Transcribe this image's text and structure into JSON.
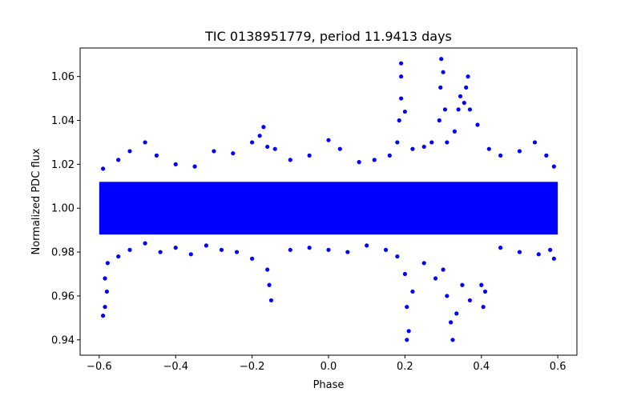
{
  "chart_data": {
    "type": "scatter",
    "title": "TIC 0138951779, period 11.9413 days",
    "xlabel": "Phase",
    "ylabel": "Normalized PDC flux",
    "xlim": [
      -0.65,
      0.65
    ],
    "ylim": [
      0.933,
      1.073
    ],
    "xticks": [
      -0.6,
      -0.4,
      -0.2,
      0.0,
      0.2,
      0.4,
      0.6
    ],
    "xtick_labels": [
      "−0.6",
      "−0.4",
      "−0.2",
      "0.0",
      "0.2",
      "0.4",
      "0.6"
    ],
    "yticks": [
      0.94,
      0.96,
      0.98,
      1.0,
      1.02,
      1.04,
      1.06
    ],
    "ytick_labels": [
      "0.94",
      "0.96",
      "0.98",
      "1.00",
      "1.02",
      "1.04",
      "1.06"
    ],
    "grid": false,
    "series": [
      {
        "name": "flux",
        "color": "#0000ff",
        "band": {
          "x": [
            -0.6,
            0.6
          ],
          "y": [
            0.988,
            1.012
          ]
        },
        "points": [
          [
            -0.59,
            0.951
          ],
          [
            -0.585,
            0.955
          ],
          [
            -0.58,
            0.962
          ],
          [
            -0.585,
            0.968
          ],
          [
            -0.578,
            0.975
          ],
          [
            -0.55,
            0.978
          ],
          [
            -0.52,
            0.981
          ],
          [
            -0.48,
            0.984
          ],
          [
            -0.44,
            0.98
          ],
          [
            -0.4,
            0.982
          ],
          [
            -0.36,
            0.979
          ],
          [
            -0.32,
            0.983
          ],
          [
            -0.28,
            0.981
          ],
          [
            -0.24,
            0.98
          ],
          [
            -0.2,
            0.977
          ],
          [
            -0.16,
            0.972
          ],
          [
            -0.155,
            0.965
          ],
          [
            -0.15,
            0.958
          ],
          [
            -0.1,
            0.981
          ],
          [
            -0.05,
            0.982
          ],
          [
            0.0,
            0.981
          ],
          [
            0.05,
            0.98
          ],
          [
            0.1,
            0.983
          ],
          [
            0.15,
            0.981
          ],
          [
            0.18,
            0.978
          ],
          [
            0.2,
            0.97
          ],
          [
            0.205,
            0.955
          ],
          [
            0.21,
            0.944
          ],
          [
            0.205,
            0.94
          ],
          [
            0.22,
            0.962
          ],
          [
            0.25,
            0.975
          ],
          [
            0.28,
            0.968
          ],
          [
            0.3,
            0.972
          ],
          [
            0.31,
            0.96
          ],
          [
            0.32,
            0.948
          ],
          [
            0.325,
            0.94
          ],
          [
            0.335,
            0.952
          ],
          [
            0.35,
            0.965
          ],
          [
            0.37,
            0.958
          ],
          [
            0.4,
            0.965
          ],
          [
            0.405,
            0.955
          ],
          [
            0.41,
            0.962
          ],
          [
            0.45,
            0.982
          ],
          [
            0.5,
            0.98
          ],
          [
            0.55,
            0.979
          ],
          [
            0.58,
            0.981
          ],
          [
            0.59,
            0.977
          ],
          [
            -0.59,
            1.018
          ],
          [
            -0.55,
            1.022
          ],
          [
            -0.52,
            1.026
          ],
          [
            -0.48,
            1.03
          ],
          [
            -0.45,
            1.024
          ],
          [
            -0.4,
            1.02
          ],
          [
            -0.35,
            1.019
          ],
          [
            -0.3,
            1.026
          ],
          [
            -0.25,
            1.025
          ],
          [
            -0.2,
            1.03
          ],
          [
            -0.18,
            1.033
          ],
          [
            -0.17,
            1.037
          ],
          [
            -0.16,
            1.028
          ],
          [
            -0.14,
            1.027
          ],
          [
            -0.1,
            1.022
          ],
          [
            -0.05,
            1.024
          ],
          [
            0.0,
            1.031
          ],
          [
            0.03,
            1.027
          ],
          [
            0.08,
            1.021
          ],
          [
            0.12,
            1.022
          ],
          [
            0.16,
            1.024
          ],
          [
            0.18,
            1.03
          ],
          [
            0.185,
            1.04
          ],
          [
            0.19,
            1.05
          ],
          [
            0.19,
            1.06
          ],
          [
            0.19,
            1.066
          ],
          [
            0.2,
            1.044
          ],
          [
            0.22,
            1.027
          ],
          [
            0.25,
            1.028
          ],
          [
            0.27,
            1.03
          ],
          [
            0.29,
            1.04
          ],
          [
            0.293,
            1.055
          ],
          [
            0.295,
            1.068
          ],
          [
            0.3,
            1.062
          ],
          [
            0.305,
            1.045
          ],
          [
            0.31,
            1.03
          ],
          [
            0.33,
            1.035
          ],
          [
            0.34,
            1.045
          ],
          [
            0.345,
            1.051
          ],
          [
            0.355,
            1.048
          ],
          [
            0.36,
            1.055
          ],
          [
            0.365,
            1.06
          ],
          [
            0.37,
            1.045
          ],
          [
            0.39,
            1.038
          ],
          [
            0.42,
            1.027
          ],
          [
            0.45,
            1.024
          ],
          [
            0.5,
            1.026
          ],
          [
            0.54,
            1.03
          ],
          [
            0.57,
            1.024
          ],
          [
            0.59,
            1.019
          ]
        ]
      }
    ]
  }
}
